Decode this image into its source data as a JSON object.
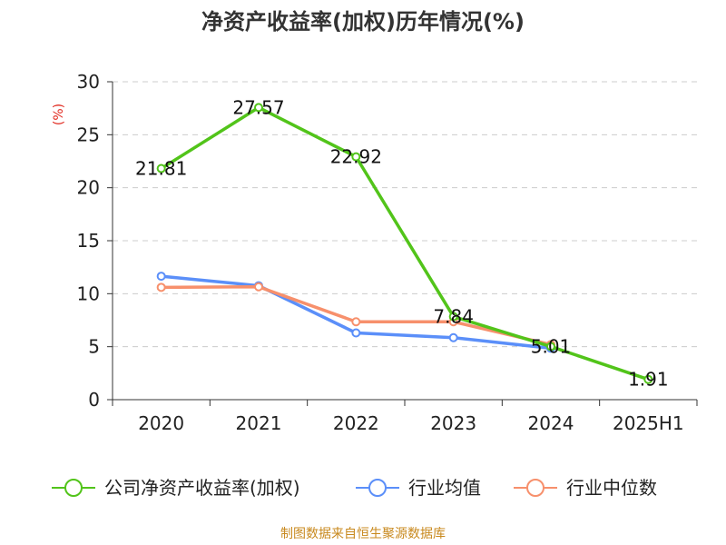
{
  "chart_data": {
    "type": "line",
    "title": "净资产收益率(加权)历年情况(%)",
    "ylabel": "(%)",
    "categories": [
      "2020",
      "2021",
      "2022",
      "2023",
      "2024",
      "2025H1"
    ],
    "ylim": [
      0,
      30
    ],
    "yticks": [
      0,
      5,
      10,
      15,
      20,
      25,
      30
    ],
    "grid": true,
    "legend_position": "bottom",
    "series": [
      {
        "name": "公司净资产收益率(加权)",
        "color": "#52c41a",
        "values": [
          21.81,
          27.57,
          22.92,
          7.84,
          5.01,
          1.91
        ],
        "labels": [
          "21.81",
          "27.57",
          "22.92",
          "7.84",
          "5.01",
          "1.91"
        ]
      },
      {
        "name": "行业均值",
        "color": "#5b8ff9",
        "values": [
          11.65,
          10.75,
          6.3,
          5.85,
          4.85,
          null
        ]
      },
      {
        "name": "行业中位数",
        "color": "#f7906c",
        "values": [
          10.6,
          10.65,
          7.35,
          7.35,
          5.2,
          null
        ]
      }
    ]
  },
  "source": "制图数据来自恒生聚源数据库"
}
